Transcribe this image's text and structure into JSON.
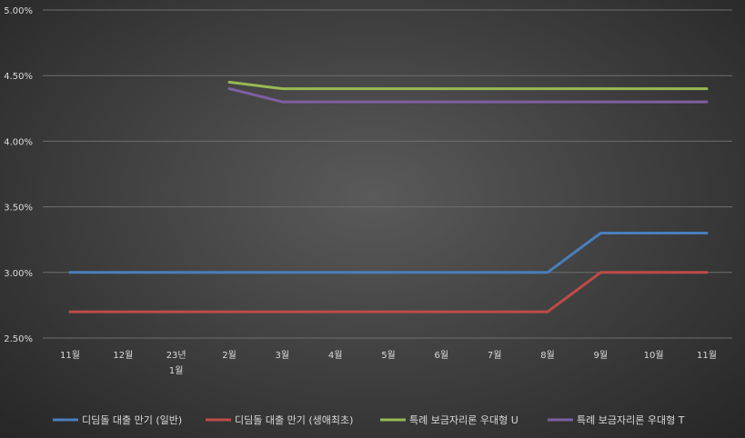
{
  "chart_data": {
    "type": "line",
    "title": "",
    "xlabel": "",
    "ylabel": "",
    "categories": [
      [
        "11월"
      ],
      [
        "12월"
      ],
      [
        "23년",
        "1월"
      ],
      [
        "2월"
      ],
      [
        "3월"
      ],
      [
        "4월"
      ],
      [
        "5월"
      ],
      [
        "6월"
      ],
      [
        "7월"
      ],
      [
        "8월"
      ],
      [
        "9월"
      ],
      [
        "10월"
      ],
      [
        "11월"
      ]
    ],
    "ylim": [
      2.5,
      5.0
    ],
    "yticks": [
      {
        "value": 2.5,
        "label": "2.50%"
      },
      {
        "value": 3.0,
        "label": "3.00%"
      },
      {
        "value": 3.5,
        "label": "3.50%"
      },
      {
        "value": 4.0,
        "label": "4.00%"
      },
      {
        "value": 4.5,
        "label": "4.50%"
      },
      {
        "value": 5.0,
        "label": "5.00%"
      }
    ],
    "grid": true,
    "legend_position": "bottom",
    "series": [
      {
        "name": "디딤돌 대출 만기 (일반)",
        "color": "#4a7ebb",
        "values": [
          3.0,
          3.0,
          3.0,
          3.0,
          3.0,
          3.0,
          3.0,
          3.0,
          3.0,
          3.0,
          3.3,
          3.3,
          3.3
        ]
      },
      {
        "name": "디딤돌 대출 만기 (생애최초)",
        "color": "#be4b48",
        "values": [
          2.7,
          2.7,
          2.7,
          2.7,
          2.7,
          2.7,
          2.7,
          2.7,
          2.7,
          2.7,
          3.0,
          3.0,
          3.0
        ]
      },
      {
        "name": "특례 보금자리론 우대형 U",
        "color": "#98b954",
        "values": [
          null,
          null,
          null,
          4.45,
          4.4,
          4.4,
          4.4,
          4.4,
          4.4,
          4.4,
          4.4,
          4.4,
          4.4
        ]
      },
      {
        "name": "특례 보금자리론 우대형 T",
        "color": "#7d60a0",
        "values": [
          null,
          null,
          null,
          4.4,
          4.3,
          4.3,
          4.3,
          4.3,
          4.3,
          4.3,
          4.3,
          4.3,
          4.3
        ]
      }
    ]
  }
}
